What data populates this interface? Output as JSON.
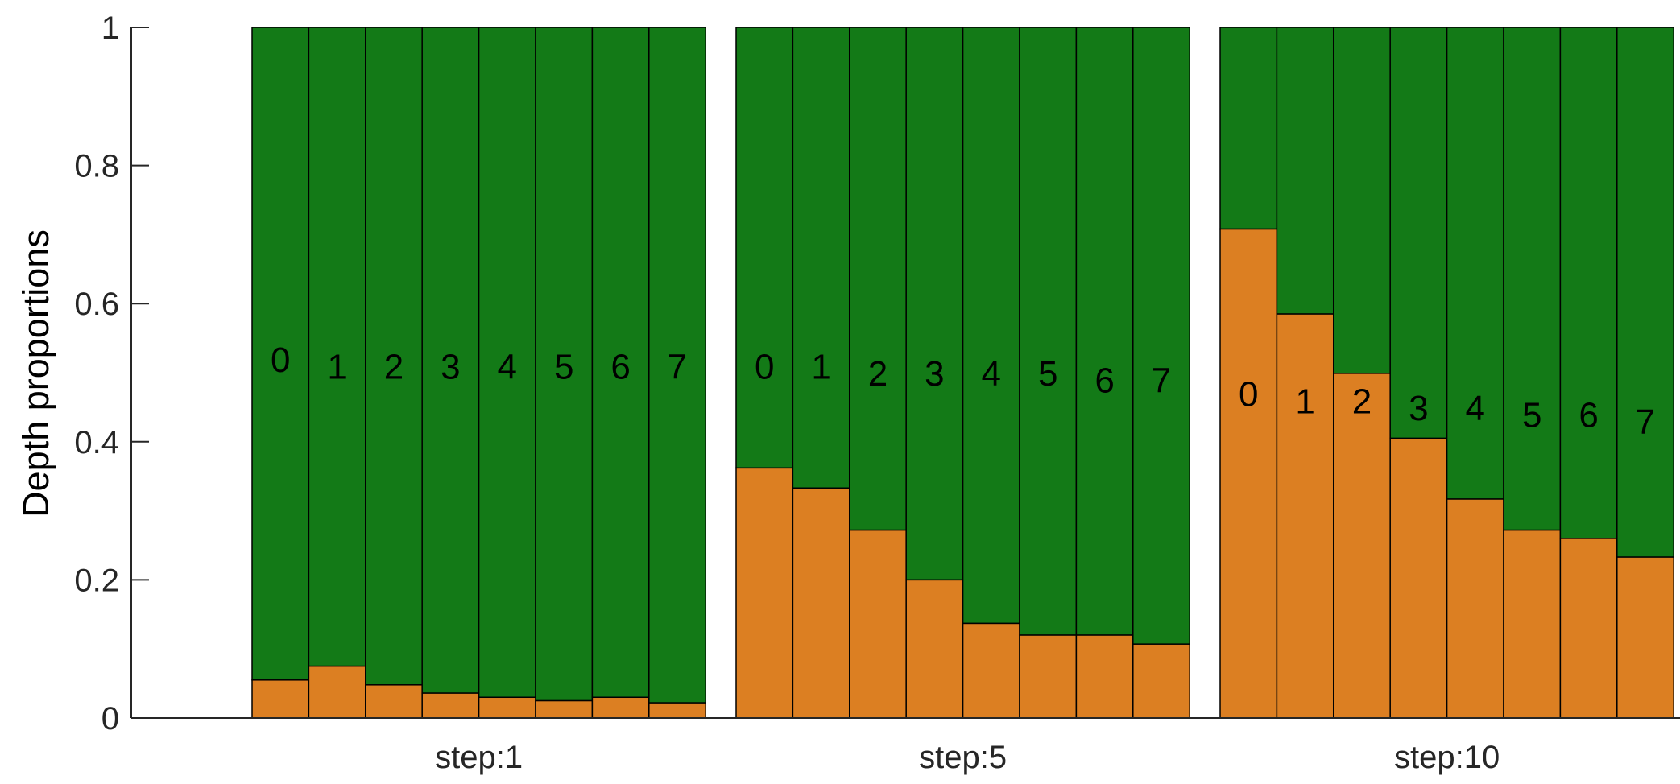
{
  "chart_data": {
    "type": "bar",
    "stacked": true,
    "ylabel": "Depth proportions",
    "xlabel": "",
    "ylim": [
      0,
      1
    ],
    "yticks": [
      0,
      0.2,
      0.4,
      0.6,
      0.8,
      1
    ],
    "ytick_labels": [
      "0",
      "0.2",
      "0.4",
      "0.6",
      "0.8",
      "1"
    ],
    "grid": false,
    "legend": null,
    "colors": {
      "lower": "#DC7F22",
      "upper": "#137A17",
      "edge": "#000000",
      "axis": "#262626"
    },
    "groups": [
      {
        "label": "step:1",
        "bars": [
          "0",
          "1",
          "2",
          "3",
          "4",
          "5",
          "6",
          "7"
        ],
        "lower_values": [
          0.055,
          0.075,
          0.048,
          0.036,
          0.03,
          0.025,
          0.03,
          0.022
        ],
        "label_y": [
          0.52,
          0.51,
          0.51,
          0.51,
          0.51,
          0.51,
          0.51,
          0.51
        ]
      },
      {
        "label": "step:5",
        "bars": [
          "0",
          "1",
          "2",
          "3",
          "4",
          "5",
          "6",
          "7"
        ],
        "lower_values": [
          0.362,
          0.333,
          0.272,
          0.2,
          0.137,
          0.12,
          0.12,
          0.107
        ],
        "label_y": [
          0.51,
          0.51,
          0.5,
          0.5,
          0.5,
          0.5,
          0.49,
          0.49
        ]
      },
      {
        "label": "step:10",
        "bars": [
          "0",
          "1",
          "2",
          "3",
          "4",
          "5",
          "6",
          "7"
        ],
        "lower_values": [
          0.708,
          0.585,
          0.499,
          0.405,
          0.317,
          0.272,
          0.26,
          0.233
        ],
        "label_y": [
          0.47,
          0.46,
          0.46,
          0.45,
          0.45,
          0.44,
          0.44,
          0.43
        ]
      }
    ]
  }
}
